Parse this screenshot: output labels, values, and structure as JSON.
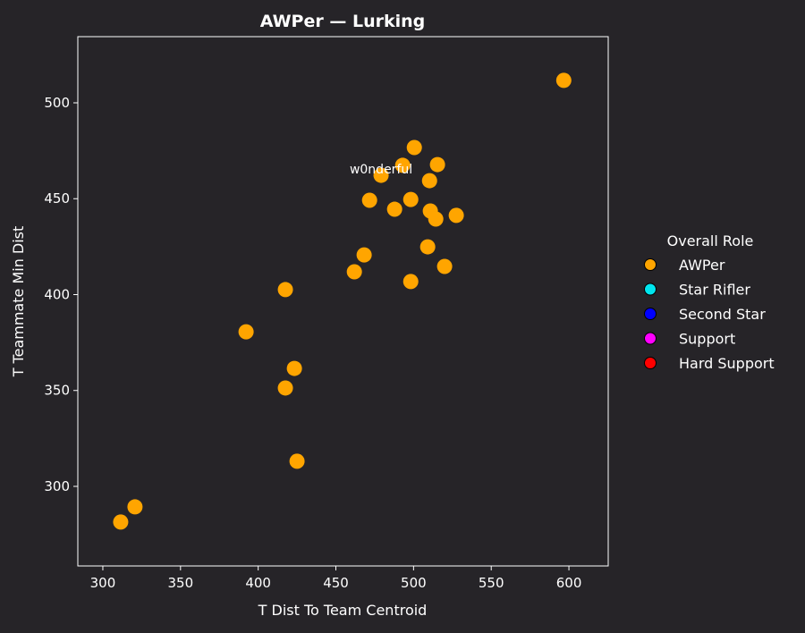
{
  "chart_data": {
    "type": "scatter",
    "title": "AWPer — Lurking",
    "xlabel": "T Dist To Team Centroid",
    "ylabel": "T Teammate Min Dist",
    "xlim": [
      283.9,
      625.3
    ],
    "ylim": [
      258.5,
      534.5
    ],
    "xticks": [
      300,
      350,
      400,
      450,
      500,
      550,
      600
    ],
    "yticks": [
      300,
      350,
      400,
      450,
      500
    ],
    "grid": false,
    "legend": {
      "title": "Overall Role",
      "placement": "right",
      "entries": [
        {
          "label": "AWPer",
          "color": "#ffa500"
        },
        {
          "label": "Star Rifler",
          "color": "#00e5ee"
        },
        {
          "label": "Second Star",
          "color": "#0000ff"
        },
        {
          "label": "Support",
          "color": "#ff00ff"
        },
        {
          "label": "Hard Support",
          "color": "#ff0000"
        }
      ]
    },
    "series": [
      {
        "name": "AWPer",
        "color": "#ffa500",
        "points": [
          {
            "x": 596.7,
            "y": 511.7
          },
          {
            "x": 500.5,
            "y": 476.7
          },
          {
            "x": 493.0,
            "y": 467.4
          },
          {
            "x": 515.4,
            "y": 467.8
          },
          {
            "x": 479.1,
            "y": 462.2,
            "label": "w0nderful"
          },
          {
            "x": 510.3,
            "y": 459.4
          },
          {
            "x": 471.7,
            "y": 449.2
          },
          {
            "x": 498.2,
            "y": 449.6
          },
          {
            "x": 487.8,
            "y": 444.5
          },
          {
            "x": 510.8,
            "y": 443.6
          },
          {
            "x": 514.3,
            "y": 439.4
          },
          {
            "x": 527.5,
            "y": 441.3
          },
          {
            "x": 509.1,
            "y": 424.9
          },
          {
            "x": 468.2,
            "y": 420.7
          },
          {
            "x": 520.0,
            "y": 414.7
          },
          {
            "x": 461.9,
            "y": 411.9
          },
          {
            "x": 498.2,
            "y": 406.8
          },
          {
            "x": 417.5,
            "y": 402.6
          },
          {
            "x": 392.2,
            "y": 380.6
          },
          {
            "x": 423.3,
            "y": 361.5
          },
          {
            "x": 417.5,
            "y": 351.3
          },
          {
            "x": 425.0,
            "y": 313.1
          },
          {
            "x": 320.7,
            "y": 289.3
          },
          {
            "x": 311.5,
            "y": 281.4
          }
        ]
      }
    ]
  }
}
